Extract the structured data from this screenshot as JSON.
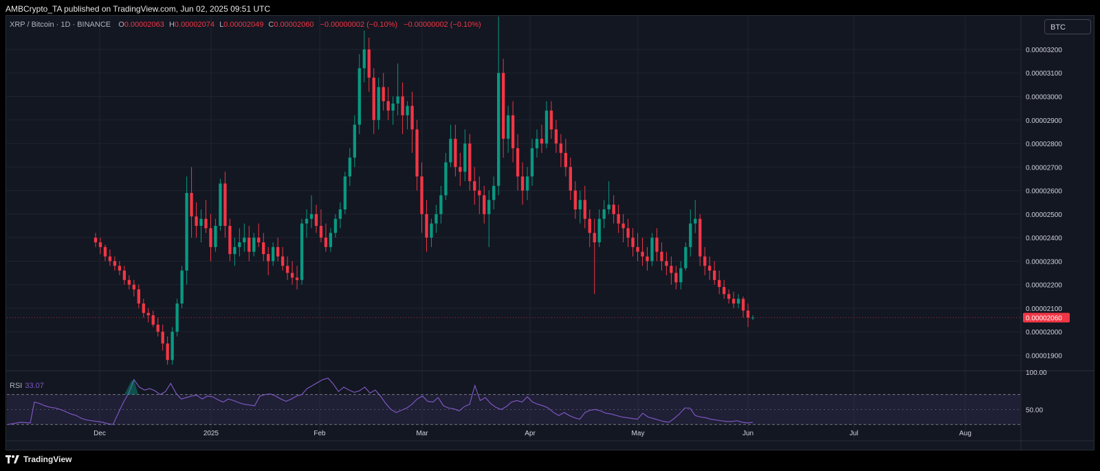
{
  "header": {
    "publisher_line": "AMBCrypto_TA published on TradingView.com, Jun 02, 2025 09:51 UTC"
  },
  "legend": {
    "symbol": "XRP / Bitcoin · 1D · BINANCE",
    "o_label": "O",
    "o_value": "0.00002063",
    "h_label": "H",
    "h_value": "0.00002074",
    "l_label": "L",
    "l_value": "0.00002049",
    "c_label": "C",
    "c_value": "0.00002060",
    "change": "−0.00000002 (−0.10%)",
    "change2": "−0.00000002 (−0.10%)"
  },
  "currency_button": "BTC",
  "last_price_badge": "0.00002060",
  "rsi": {
    "label": "RSI",
    "value": "33.07"
  },
  "footer": {
    "brand": "TradingView"
  },
  "colors": {
    "up": "#089981",
    "down": "#f23645",
    "rsi_line": "#7e57c2",
    "background": "#131722"
  },
  "chart_data": {
    "type": "candlestick",
    "series": [
      {
        "name": "XRP / Bitcoin",
        "ohlc": [
          [
            2.4,
            2.42,
            2.36,
            2.38
          ],
          [
            2.38,
            2.4,
            2.33,
            2.36
          ],
          [
            2.36,
            2.37,
            2.3,
            2.32
          ],
          [
            2.32,
            2.35,
            2.28,
            2.3
          ],
          [
            2.3,
            2.32,
            2.26,
            2.28
          ],
          [
            2.28,
            2.3,
            2.24,
            2.26
          ],
          [
            2.26,
            2.28,
            2.2,
            2.22
          ],
          [
            2.22,
            2.24,
            2.18,
            2.2
          ],
          [
            2.2,
            2.22,
            2.15,
            2.18
          ],
          [
            2.18,
            2.2,
            2.1,
            2.12
          ],
          [
            2.12,
            2.14,
            2.06,
            2.08
          ],
          [
            2.08,
            2.1,
            2.04,
            2.07
          ],
          [
            2.07,
            2.09,
            2.02,
            2.03
          ],
          [
            2.03,
            2.06,
            1.98,
            2.0
          ],
          [
            2.0,
            2.03,
            1.92,
            1.95
          ],
          [
            1.95,
            1.98,
            1.86,
            1.88
          ],
          [
            1.88,
            2.02,
            1.86,
            2.0
          ],
          [
            2.0,
            2.14,
            1.98,
            2.12
          ],
          [
            2.12,
            2.28,
            2.1,
            2.26
          ],
          [
            2.26,
            2.66,
            2.2,
            2.59
          ],
          [
            2.59,
            2.7,
            2.4,
            2.49
          ],
          [
            2.49,
            2.55,
            2.4,
            2.45
          ],
          [
            2.45,
            2.52,
            2.38,
            2.48
          ],
          [
            2.48,
            2.56,
            2.42,
            2.44
          ],
          [
            2.44,
            2.5,
            2.3,
            2.36
          ],
          [
            2.36,
            2.48,
            2.34,
            2.45
          ],
          [
            2.45,
            2.65,
            2.43,
            2.63
          ],
          [
            2.63,
            2.68,
            2.4,
            2.45
          ],
          [
            2.45,
            2.48,
            2.3,
            2.33
          ],
          [
            2.33,
            2.4,
            2.28,
            2.36
          ],
          [
            2.36,
            2.44,
            2.32,
            2.38
          ],
          [
            2.38,
            2.46,
            2.34,
            2.4
          ],
          [
            2.4,
            2.45,
            2.3,
            2.34
          ],
          [
            2.34,
            2.42,
            2.32,
            2.4
          ],
          [
            2.4,
            2.46,
            2.36,
            2.38
          ],
          [
            2.38,
            2.42,
            2.3,
            2.33
          ],
          [
            2.33,
            2.36,
            2.24,
            2.3
          ],
          [
            2.3,
            2.38,
            2.28,
            2.36
          ],
          [
            2.36,
            2.4,
            2.3,
            2.32
          ],
          [
            2.32,
            2.36,
            2.26,
            2.28
          ],
          [
            2.28,
            2.32,
            2.22,
            2.25
          ],
          [
            2.25,
            2.3,
            2.2,
            2.23
          ],
          [
            2.23,
            2.28,
            2.18,
            2.22
          ],
          [
            2.22,
            2.48,
            2.2,
            2.46
          ],
          [
            2.46,
            2.52,
            2.4,
            2.48
          ],
          [
            2.48,
            2.58,
            2.44,
            2.5
          ],
          [
            2.5,
            2.54,
            2.42,
            2.45
          ],
          [
            2.45,
            2.52,
            2.38,
            2.4
          ],
          [
            2.4,
            2.46,
            2.34,
            2.36
          ],
          [
            2.36,
            2.44,
            2.34,
            2.42
          ],
          [
            2.42,
            2.5,
            2.4,
            2.48
          ],
          [
            2.48,
            2.55,
            2.44,
            2.52
          ],
          [
            2.52,
            2.68,
            2.5,
            2.66
          ],
          [
            2.66,
            2.78,
            2.62,
            2.74
          ],
          [
            2.74,
            2.92,
            2.7,
            2.88
          ],
          [
            2.88,
            3.18,
            2.84,
            3.12
          ],
          [
            3.12,
            3.28,
            3.06,
            3.2
          ],
          [
            3.2,
            3.25,
            3.02,
            3.08
          ],
          [
            3.08,
            3.12,
            2.84,
            2.9
          ],
          [
            2.9,
            3.08,
            2.86,
            3.04
          ],
          [
            3.04,
            3.1,
            2.94,
            2.98
          ],
          [
            2.98,
            3.04,
            2.9,
            2.94
          ],
          [
            2.94,
            3.0,
            2.88,
            2.97
          ],
          [
            2.97,
            3.14,
            2.92,
            3.0
          ],
          [
            3.0,
            3.06,
            2.84,
            2.92
          ],
          [
            2.92,
            2.98,
            2.86,
            2.96
          ],
          [
            2.96,
            3.02,
            2.76,
            2.86
          ],
          [
            2.86,
            2.9,
            2.6,
            2.66
          ],
          [
            2.66,
            2.72,
            2.42,
            2.5
          ],
          [
            2.5,
            2.56,
            2.34,
            2.4
          ],
          [
            2.4,
            2.48,
            2.36,
            2.46
          ],
          [
            2.46,
            2.54,
            2.42,
            2.5
          ],
          [
            2.5,
            2.62,
            2.46,
            2.58
          ],
          [
            2.58,
            2.76,
            2.56,
            2.72
          ],
          [
            2.72,
            2.88,
            2.7,
            2.82
          ],
          [
            2.82,
            2.88,
            2.66,
            2.7
          ],
          [
            2.7,
            2.76,
            2.62,
            2.68
          ],
          [
            2.68,
            2.86,
            2.64,
            2.8
          ],
          [
            2.8,
            2.84,
            2.6,
            2.64
          ],
          [
            2.64,
            2.7,
            2.54,
            2.6
          ],
          [
            2.6,
            2.66,
            2.5,
            2.58
          ],
          [
            2.58,
            2.62,
            2.46,
            2.5
          ],
          [
            2.5,
            2.6,
            2.36,
            2.56
          ],
          [
            2.56,
            2.66,
            2.52,
            2.62
          ],
          [
            2.62,
            3.34,
            2.58,
            3.1
          ],
          [
            3.1,
            3.16,
            2.74,
            2.82
          ],
          [
            2.82,
            2.96,
            2.76,
            2.92
          ],
          [
            2.92,
            2.98,
            2.72,
            2.78
          ],
          [
            2.78,
            2.84,
            2.6,
            2.66
          ],
          [
            2.66,
            2.72,
            2.54,
            2.6
          ],
          [
            2.6,
            2.7,
            2.56,
            2.66
          ],
          [
            2.66,
            2.82,
            2.62,
            2.78
          ],
          [
            2.78,
            2.86,
            2.74,
            2.82
          ],
          [
            2.82,
            2.88,
            2.76,
            2.8
          ],
          [
            2.8,
            2.98,
            2.78,
            2.94
          ],
          [
            2.94,
            2.98,
            2.82,
            2.86
          ],
          [
            2.86,
            2.9,
            2.76,
            2.8
          ],
          [
            2.8,
            2.84,
            2.7,
            2.76
          ],
          [
            2.76,
            2.82,
            2.66,
            2.7
          ],
          [
            2.7,
            2.74,
            2.56,
            2.6
          ],
          [
            2.6,
            2.64,
            2.48,
            2.52
          ],
          [
            2.52,
            2.6,
            2.46,
            2.56
          ],
          [
            2.56,
            2.62,
            2.44,
            2.48
          ],
          [
            2.48,
            2.52,
            2.36,
            2.42
          ],
          [
            2.42,
            2.48,
            2.16,
            2.38
          ],
          [
            2.38,
            2.52,
            2.36,
            2.48
          ],
          [
            2.48,
            2.56,
            2.44,
            2.52
          ],
          [
            2.52,
            2.64,
            2.5,
            2.54
          ],
          [
            2.54,
            2.58,
            2.46,
            2.5
          ],
          [
            2.5,
            2.54,
            2.42,
            2.46
          ],
          [
            2.46,
            2.5,
            2.38,
            2.44
          ],
          [
            2.44,
            2.48,
            2.36,
            2.4
          ],
          [
            2.4,
            2.44,
            2.32,
            2.36
          ],
          [
            2.36,
            2.42,
            2.3,
            2.34
          ],
          [
            2.34,
            2.4,
            2.28,
            2.32
          ],
          [
            2.32,
            2.36,
            2.26,
            2.3
          ],
          [
            2.3,
            2.42,
            2.28,
            2.4
          ],
          [
            2.4,
            2.44,
            2.3,
            2.34
          ],
          [
            2.34,
            2.38,
            2.26,
            2.3
          ],
          [
            2.3,
            2.34,
            2.24,
            2.28
          ],
          [
            2.28,
            2.32,
            2.2,
            2.25
          ],
          [
            2.25,
            2.28,
            2.18,
            2.21
          ],
          [
            2.21,
            2.3,
            2.18,
            2.27
          ],
          [
            2.27,
            2.38,
            2.26,
            2.36
          ],
          [
            2.36,
            2.52,
            2.32,
            2.46
          ],
          [
            2.46,
            2.56,
            2.42,
            2.48
          ],
          [
            2.48,
            2.5,
            2.28,
            2.32
          ],
          [
            2.32,
            2.36,
            2.24,
            2.28
          ],
          [
            2.28,
            2.32,
            2.22,
            2.26
          ],
          [
            2.26,
            2.3,
            2.2,
            2.22
          ],
          [
            2.22,
            2.26,
            2.16,
            2.19
          ],
          [
            2.19,
            2.22,
            2.14,
            2.16
          ],
          [
            2.16,
            2.18,
            2.12,
            2.14
          ],
          [
            2.14,
            2.17,
            2.1,
            2.12
          ],
          [
            2.12,
            2.16,
            2.1,
            2.14
          ],
          [
            2.14,
            2.15,
            2.06,
            2.09
          ],
          [
            2.09,
            2.12,
            2.02,
            2.06
          ],
          [
            2.06,
            2.07,
            2.05,
            2.06
          ]
        ]
      },
      {
        "name": "RSI",
        "values": [
          60,
          58,
          55,
          53,
          52,
          50,
          47,
          44,
          42,
          38,
          36,
          35,
          34,
          33,
          31,
          30,
          45,
          60,
          72,
          90,
          80,
          76,
          78,
          75,
          70,
          74,
          85,
          72,
          64,
          66,
          68,
          69,
          64,
          68,
          67,
          63,
          60,
          64,
          62,
          59,
          57,
          56,
          55,
          68,
          70,
          71,
          68,
          64,
          61,
          64,
          68,
          70,
          78,
          82,
          86,
          90,
          92,
          84,
          74,
          80,
          76,
          73,
          75,
          80,
          72,
          76,
          68,
          58,
          50,
          46,
          49,
          52,
          57,
          64,
          68,
          61,
          60,
          66,
          55,
          52,
          51,
          48,
          54,
          57,
          82,
          62,
          66,
          58,
          53,
          50,
          54,
          60,
          62,
          60,
          67,
          60,
          57,
          55,
          52,
          46,
          42,
          46,
          42,
          39,
          37,
          46,
          49,
          50,
          48,
          45,
          44,
          42,
          40,
          39,
          38,
          37,
          45,
          40,
          38,
          36,
          34,
          33,
          38,
          44,
          52,
          52,
          42,
          40,
          39,
          37,
          36,
          35,
          34,
          34,
          35,
          33,
          32,
          33
        ]
      }
    ],
    "xlabel": "",
    "ylabel": "",
    "x_tick_labels": [
      "Dec",
      "2025",
      "Feb",
      "Mar",
      "Apr",
      "May",
      "Jun",
      "Jul",
      "Aug"
    ],
    "y_tick_labels": [
      "0.00003200",
      "0.00003100",
      "0.00003000",
      "0.00002900",
      "0.00002800",
      "0.00002700",
      "0.00002600",
      "0.00002500",
      "0.00002400",
      "0.00002300",
      "0.00002200",
      "0.00002100",
      "0.00002000",
      "0.00001900"
    ],
    "rsi_tick_labels": [
      "100.00",
      "50.00"
    ],
    "ylim": [
      1.84,
      3.34
    ],
    "y_unit_scale": "1e-5 BTC",
    "rsi_ylim": [
      10,
      100
    ],
    "rsi_band": [
      30,
      70
    ],
    "grid": true,
    "legend_position": "top-left"
  }
}
